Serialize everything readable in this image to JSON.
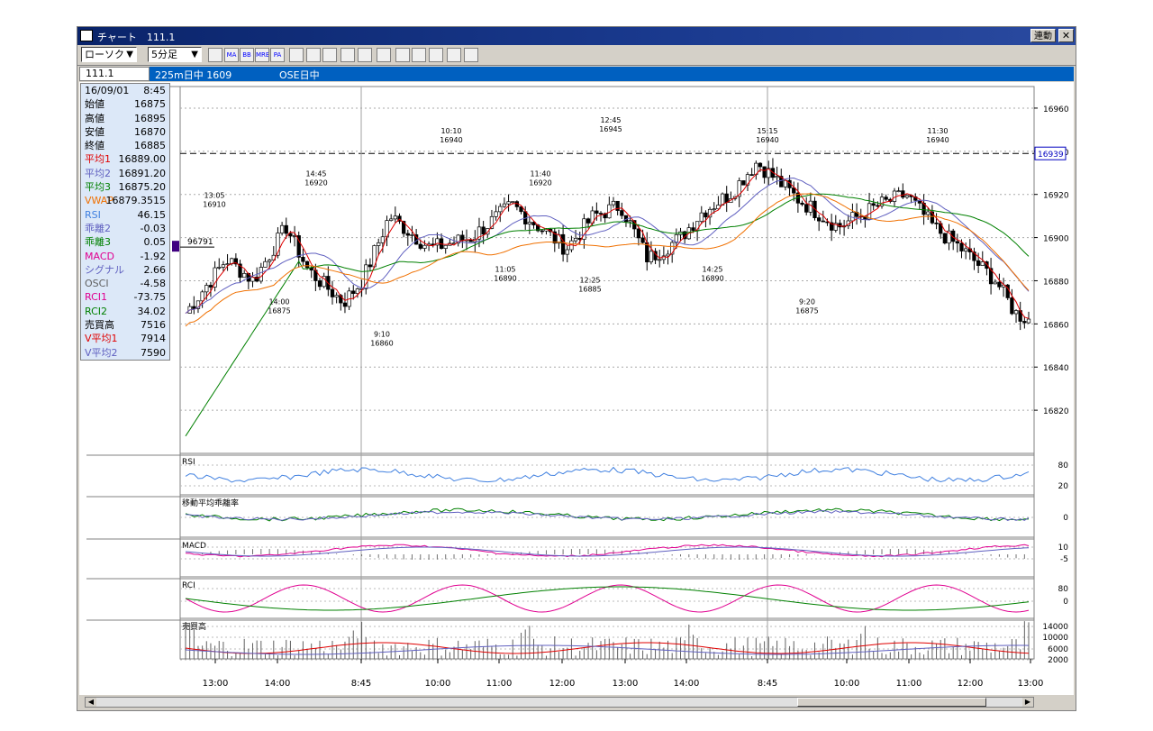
{
  "window": {
    "title": "チャート　111.1",
    "link_button": "連動",
    "close_button": "✕"
  },
  "toolbar": {
    "chart_type": "ローソク",
    "timeframe": "5分足",
    "icons": [
      "chart-settings-icon",
      "ma-icon",
      "bb-icon",
      "mre-icon",
      "pa-icon",
      "line-icon",
      "zigzag-icon",
      "cross-icon",
      "zoom-icon",
      "grid-icon",
      "bar-icon",
      "pen-icon",
      "cursor-icon",
      "eraser-icon",
      "search-icon",
      "ruler-icon"
    ],
    "icon_labels": [
      "",
      "MA",
      "BB",
      "MRE",
      "PA",
      "",
      "",
      "",
      "",
      "",
      "",
      "",
      "",
      "",
      "",
      ""
    ]
  },
  "infobar": {
    "code": "111.1",
    "instrument": "225m日中 1609",
    "session": "OSE日中"
  },
  "info_panel": {
    "date": "16/09/01",
    "time": "8:45",
    "rows": [
      {
        "label": "始値",
        "value": "16875",
        "color": "#000000"
      },
      {
        "label": "高値",
        "value": "16895",
        "color": "#000000"
      },
      {
        "label": "安値",
        "value": "16870",
        "color": "#000000"
      },
      {
        "label": "終値",
        "value": "16885",
        "color": "#000000"
      },
      {
        "label": "平均1",
        "value": "16889.00",
        "color": "#e00000"
      },
      {
        "label": "平均2",
        "value": "16891.20",
        "color": "#6060c0"
      },
      {
        "label": "平均3",
        "value": "16875.20",
        "color": "#008000"
      },
      {
        "label": "VWAP",
        "value": "16879.3515",
        "color": "#f07000"
      },
      {
        "label": "RSI",
        "value": "46.15",
        "color": "#4080e0"
      },
      {
        "label": "乖離2",
        "value": "-0.03",
        "color": "#6060c0"
      },
      {
        "label": "乖離3",
        "value": "0.05",
        "color": "#008000"
      },
      {
        "label": "MACD",
        "value": "-1.92",
        "color": "#e00090"
      },
      {
        "label": "シグナル",
        "value": "2.66",
        "color": "#6060c0"
      },
      {
        "label": "OSCI",
        "value": "-4.58",
        "color": "#606060"
      },
      {
        "label": "RCI1",
        "value": "-73.75",
        "color": "#e00090"
      },
      {
        "label": "RCI2",
        "value": "34.02",
        "color": "#008000"
      },
      {
        "label": "売買高",
        "value": "7516",
        "color": "#000000"
      },
      {
        "label": "V平均1",
        "value": "7914",
        "color": "#e00000"
      },
      {
        "label": "V平均2",
        "value": "7590",
        "color": "#6060c0"
      }
    ]
  },
  "price_axis": {
    "ticks": [
      "16960",
      "16940",
      "16920",
      "16900",
      "16880",
      "16860",
      "16840",
      "16820"
    ],
    "current_price": "16939",
    "left_marker": "96791"
  },
  "annotations": [
    {
      "time": "13:05",
      "price": "16910"
    },
    {
      "time": "14:45",
      "price": "16920"
    },
    {
      "time": "10:10",
      "price": "16940"
    },
    {
      "time": "11:40",
      "price": "16920"
    },
    {
      "time": "12:45",
      "price": "16945"
    },
    {
      "time": "15:15",
      "price": "16940"
    },
    {
      "time": "11:30",
      "price": "16940"
    },
    {
      "time": "14:00",
      "price": "16875"
    },
    {
      "time": "9:10",
      "price": "16860"
    },
    {
      "time": "11:05",
      "price": "16890"
    },
    {
      "time": "12:25",
      "price": "16885"
    },
    {
      "time": "14:25",
      "price": "16890"
    },
    {
      "time": "9:20",
      "price": "16875"
    }
  ],
  "sub_panels": {
    "rsi": {
      "label": "RSI",
      "ticks": [
        "80",
        "20"
      ]
    },
    "deviation": {
      "label": "移動平均乖離率",
      "ticks": [
        "0"
      ]
    },
    "macd": {
      "label": "MACD",
      "ticks": [
        "10",
        "-5"
      ]
    },
    "rci": {
      "label": "RCI",
      "ticks": [
        "80",
        "0"
      ]
    },
    "volume": {
      "label": "売買高",
      "ticks": [
        "14000",
        "10000",
        "6000",
        "2000"
      ]
    }
  },
  "x_axis": {
    "labels": [
      "13:00",
      "14:00",
      "8:45",
      "10:00",
      "11:00",
      "12:00",
      "13:00",
      "14:00",
      "8:45",
      "10:00",
      "11:00",
      "12:00",
      "13:00"
    ]
  },
  "colors": {
    "ma1": "#e00000",
    "ma2": "#6060c0",
    "ma3": "#008000",
    "vwap": "#f07000",
    "rsi": "#4080e0",
    "macd": "#e00090",
    "rci2": "#008000",
    "titlebar": "#0a246a",
    "infobar": "#0060c0"
  }
}
